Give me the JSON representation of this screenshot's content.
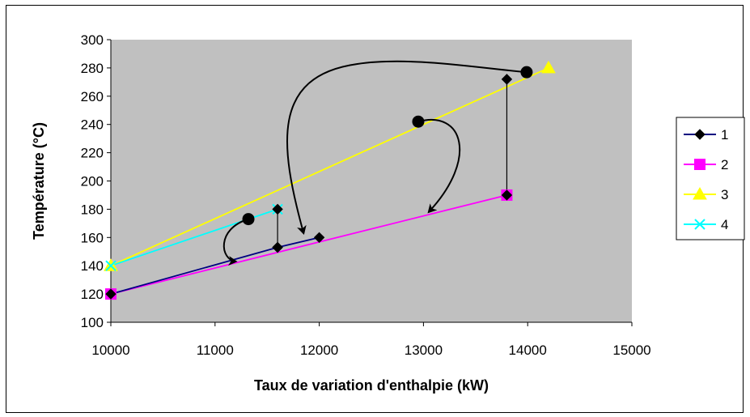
{
  "chart_data": {
    "type": "line",
    "title": "",
    "xlabel": "Taux de variation d'enthalpie (kW)",
    "ylabel": "Température (°C)",
    "xlim": [
      10000,
      15000
    ],
    "ylim": [
      100,
      300
    ],
    "x_ticks": [
      10000,
      11000,
      12000,
      13000,
      14000,
      15000
    ],
    "y_ticks": [
      100,
      120,
      140,
      160,
      180,
      200,
      220,
      240,
      260,
      280,
      300
    ],
    "grid": false,
    "background": "#c0c0c0",
    "legend_position": "right",
    "series": [
      {
        "name": "1",
        "color": "#000080",
        "marker": "diamond",
        "points": [
          [
            10000,
            120
          ],
          [
            11600,
            153
          ],
          [
            12000,
            160
          ]
        ]
      },
      {
        "name": "2",
        "color": "#ff00ff",
        "marker": "square",
        "points": [
          [
            10000,
            120
          ],
          [
            13800,
            190
          ]
        ]
      },
      {
        "name": "3",
        "color": "#ffff00",
        "marker": "triangle",
        "points": [
          [
            10000,
            140
          ],
          [
            14200,
            280
          ]
        ]
      },
      {
        "name": "4",
        "color": "#00ffff",
        "marker": "x",
        "points": [
          [
            10000,
            140
          ],
          [
            11600,
            180
          ]
        ]
      }
    ],
    "annotations": {
      "vertical_links": [
        {
          "x": 11600,
          "y_top": 180,
          "y_bottom": 153
        },
        {
          "x": 13800,
          "y_top": 272,
          "y_bottom": 190
        }
      ],
      "dots": [
        [
          11320,
          173
        ],
        [
          12950,
          242
        ],
        [
          13990,
          277
        ]
      ],
      "arrows": [
        {
          "from": [
            11320,
            173
          ],
          "to": [
            11200,
            143
          ]
        },
        {
          "from": [
            12950,
            242
          ],
          "to": [
            13050,
            178
          ]
        },
        {
          "from": [
            13990,
            277
          ],
          "to": [
            11850,
            163
          ]
        }
      ]
    }
  }
}
